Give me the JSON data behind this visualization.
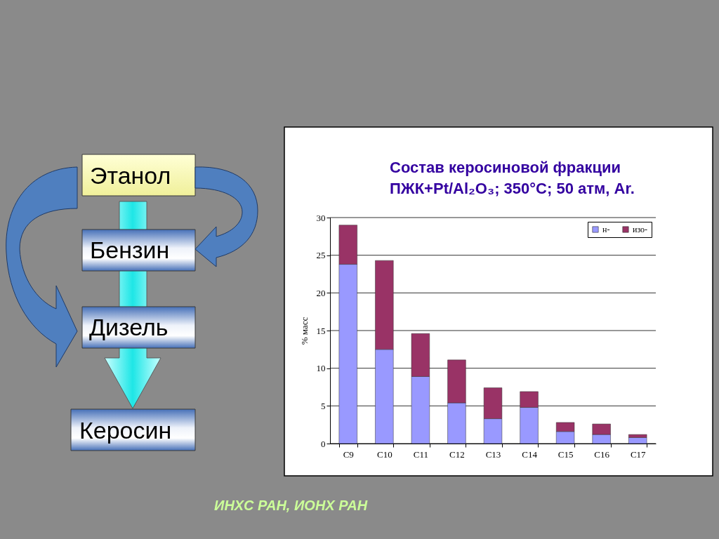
{
  "chart_data": [
    {
      "type": "other",
      "annotations": [
        "Этанол",
        "Бензин",
        "Дизель",
        "Керосин"
      ]
    },
    {
      "type": "bar",
      "title": "Состав керосиновой фракции",
      "subtitle": "ПЖК+Pt/Al₂O₃; 350°C; 50 атм, Ar.",
      "ylabel": "% масс",
      "categories": [
        "C9",
        "C10",
        "C11",
        "C12",
        "C13",
        "C14",
        "C15",
        "C16",
        "C17"
      ],
      "stacked": true,
      "series": [
        {
          "name": "н-",
          "color": "#9999ff",
          "values": [
            23.8,
            12.5,
            8.9,
            5.4,
            3.3,
            4.8,
            1.6,
            1.2,
            0.8
          ]
        },
        {
          "name": "изо-",
          "color": "#993366",
          "values": [
            5.2,
            11.8,
            5.7,
            5.7,
            4.1,
            2.1,
            1.2,
            1.4,
            0.4
          ]
        }
      ],
      "ylim": [
        0,
        30
      ],
      "yticks": [
        0,
        5,
        10,
        15,
        20,
        25,
        30
      ],
      "grid": "y",
      "legend": "top right",
      "annotations": [
        "ИНХС РАН, ИОНХ РАН"
      ]
    }
  ]
}
